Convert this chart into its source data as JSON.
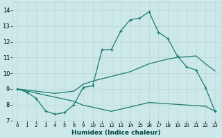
{
  "xlabel": "Humidex (Indice chaleur)",
  "bg_color": "#cce8e8",
  "grid_color": "#b8d8d8",
  "line_color": "#1a7a6e",
  "ylim": [
    7,
    14.5
  ],
  "yticks": [
    7,
    8,
    9,
    10,
    11,
    12,
    13,
    14
  ],
  "xlabels": [
    "0",
    "1",
    "2",
    "3",
    "4",
    "5",
    "6",
    "9",
    "10",
    "11",
    "12",
    "13",
    "14",
    "15",
    "16",
    "17",
    "18",
    "19",
    "20",
    "21",
    "22",
    "23"
  ],
  "line1_y": [
    9.0,
    8.8,
    8.4,
    7.6,
    7.4,
    7.5,
    8.0,
    9.1,
    9.2,
    11.5,
    11.5,
    12.7,
    13.4,
    13.5,
    13.9,
    12.6,
    12.2,
    11.1,
    10.4,
    10.2,
    9.1,
    7.6
  ],
  "line2_y": [
    9.0,
    8.87,
    8.74,
    8.61,
    8.48,
    8.35,
    8.22,
    7.97,
    7.84,
    7.71,
    7.58,
    7.72,
    7.86,
    8.0,
    8.14,
    8.1,
    8.06,
    8.02,
    7.98,
    7.94,
    7.9,
    7.6
  ],
  "line3_y": [
    9.0,
    8.93,
    8.86,
    8.79,
    8.72,
    8.79,
    8.86,
    9.3,
    9.5,
    9.65,
    9.8,
    9.95,
    10.1,
    10.35,
    10.6,
    10.75,
    10.9,
    11.0,
    11.05,
    11.1,
    10.6,
    10.15
  ]
}
